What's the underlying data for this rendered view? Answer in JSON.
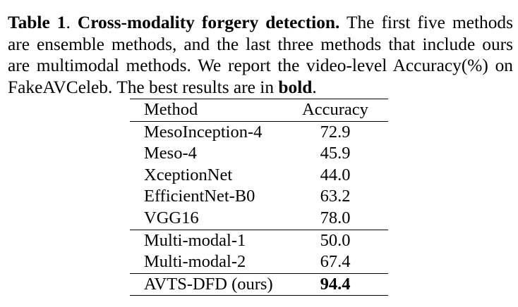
{
  "caption": {
    "label": "Table 1",
    "sep": ". ",
    "title": "Cross-modality forgery detection.",
    "text1": " The first five methods are ensemble methods, and the last three methods that include ours are multimodal methods. We report the video-level Accuracy(%) on FakeAVCeleb. The best results are in ",
    "bold_word": "bold",
    "end": "."
  },
  "table": {
    "headers": {
      "method": "Method",
      "accuracy": "Accuracy"
    },
    "rows": [
      {
        "method": "MesoInception-4",
        "accuracy": "72.9"
      },
      {
        "method": "Meso-4",
        "accuracy": "45.9"
      },
      {
        "method": "XceptionNet",
        "accuracy": "44.0"
      },
      {
        "method": "EfficientNet-B0",
        "accuracy": "63.2"
      },
      {
        "method": "VGG16",
        "accuracy": "78.0"
      },
      {
        "method": "Multi-modal-1",
        "accuracy": "50.0"
      },
      {
        "method": "Multi-modal-2",
        "accuracy": "67.4"
      },
      {
        "method": "AVTS-DFD (ours)",
        "accuracy": "94.4"
      }
    ]
  }
}
